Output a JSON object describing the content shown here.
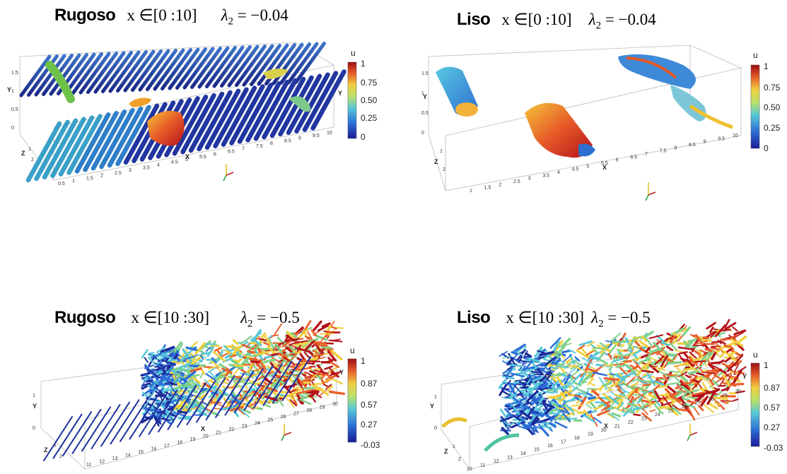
{
  "panels": [
    {
      "id": "top-left",
      "case": "Rugoso",
      "range": "x ∈[0 :10]",
      "lambda": "= −0.04",
      "colorbar": {
        "var": "u",
        "ticks": [
          "1",
          "0.75",
          "0.50",
          "0.25",
          "0"
        ]
      },
      "x_ticks": [
        "0.5",
        "1",
        "1.5",
        "2",
        "2.5",
        "3",
        "3.5",
        "4",
        "4.5",
        "5",
        "5.5",
        "6",
        "6.5",
        "7",
        "7.5",
        "8",
        "8.5",
        "9",
        "9.5",
        "10"
      ],
      "y_ticks": [
        "0",
        "0.5",
        "1",
        "1.5"
      ],
      "z_ticks": [
        "1",
        "2"
      ]
    },
    {
      "id": "top-right",
      "case": "Liso",
      "range": "x ∈[0 :10]",
      "lambda": "= −0.04",
      "colorbar": {
        "var": "u",
        "ticks": [
          "1",
          "0.75",
          "0.50",
          "0.25",
          "0"
        ]
      },
      "x_ticks": [
        "1",
        "1.5",
        "2",
        "2.5",
        "3",
        "3.5",
        "4",
        "4.5",
        "5",
        "5.5",
        "6",
        "6.5",
        "7",
        "7.5",
        "8",
        "8.5",
        "9",
        "9.5",
        "10"
      ],
      "y_ticks": [
        "0",
        "0.5",
        "1",
        "1.5"
      ],
      "z_ticks": [
        "1",
        "2"
      ]
    },
    {
      "id": "bottom-left",
      "case": "Rugoso",
      "range": "x ∈[10 :30]",
      "lambda": "= −0.5",
      "colorbar": {
        "var": "u",
        "ticks": [
          "1",
          "0.87",
          "0.57",
          "0.27",
          "-0.03"
        ]
      },
      "x_ticks": [
        "11",
        "12",
        "13",
        "14",
        "15",
        "16",
        "17",
        "18",
        "19",
        "20",
        "21",
        "22",
        "23",
        "24",
        "25",
        "26",
        "27",
        "28",
        "29",
        "30"
      ],
      "y_ticks": [
        "0",
        "1"
      ],
      "z_ticks": [
        "1",
        "2"
      ]
    },
    {
      "id": "bottom-right",
      "case": "Liso",
      "range": "x ∈[10 :30]",
      "lambda": "= −0.5",
      "colorbar": {
        "var": "u",
        "ticks": [
          "1",
          "0.87",
          "0.57",
          "0.27",
          "-0.03"
        ]
      },
      "x_ticks": [
        "10",
        "11",
        "12",
        "13",
        "14",
        "15",
        "16",
        "17",
        "18",
        "19",
        "20",
        "21",
        "22",
        "23",
        "24",
        "25",
        "26",
        "27",
        "28",
        "29",
        "30"
      ],
      "y_ticks": [
        "0",
        "1"
      ],
      "z_ticks": [
        "1",
        "2"
      ]
    }
  ],
  "axis_names": {
    "x": "X",
    "y": "Y",
    "z": "Z"
  },
  "lambda_symbol": "λ",
  "lambda_sub": "2",
  "colors": {
    "low": "#1a1aa0",
    "mid": "#4fc3a1",
    "high": "#b40f14"
  }
}
